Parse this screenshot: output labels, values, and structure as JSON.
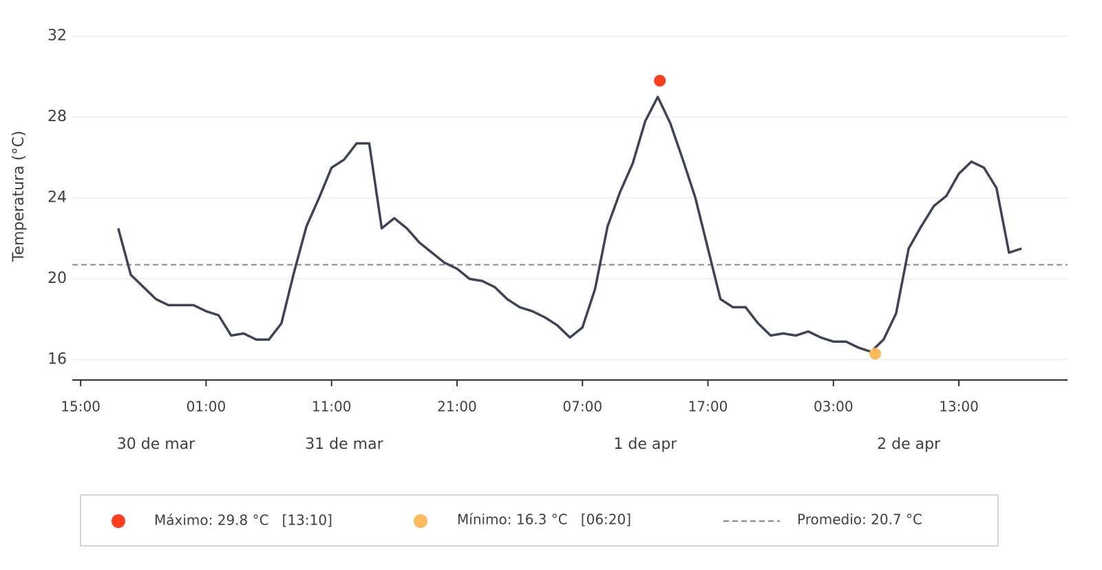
{
  "chart_data": {
    "type": "line",
    "y_label": "Temperatura (°C)",
    "x": [
      "03-30 18:00",
      "03-30 19:00",
      "03-30 20:00",
      "03-30 21:00",
      "03-30 22:00",
      "03-30 23:00",
      "03-31 00:00",
      "03-31 01:00",
      "03-31 02:00",
      "03-31 03:00",
      "03-31 04:00",
      "03-31 05:00",
      "03-31 06:00",
      "03-31 07:00",
      "03-31 08:00",
      "03-31 09:00",
      "03-31 10:00",
      "03-31 11:00",
      "03-31 12:00",
      "03-31 13:00",
      "03-31 14:00",
      "03-31 15:00",
      "03-31 16:00",
      "03-31 17:00",
      "03-31 18:00",
      "03-31 19:00",
      "03-31 20:00",
      "03-31 21:00",
      "03-31 22:00",
      "03-31 23:00",
      "04-01 00:00",
      "04-01 01:00",
      "04-01 02:00",
      "04-01 03:00",
      "04-01 04:00",
      "04-01 05:00",
      "04-01 06:00",
      "04-01 07:00",
      "04-01 08:00",
      "04-01 09:00",
      "04-01 10:00",
      "04-01 11:00",
      "04-01 12:00",
      "04-01 13:00",
      "04-01 14:00",
      "04-01 15:00",
      "04-01 16:00",
      "04-01 17:00",
      "04-01 18:00",
      "04-01 19:00",
      "04-01 20:00",
      "04-01 21:00",
      "04-01 22:00",
      "04-01 23:00",
      "04-02 00:00",
      "04-02 01:00",
      "04-02 02:00",
      "04-02 03:00",
      "04-02 04:00",
      "04-02 05:00",
      "04-02 06:00",
      "04-02 07:00",
      "04-02 08:00",
      "04-02 09:00",
      "04-02 10:00",
      "04-02 11:00",
      "04-02 12:00",
      "04-02 13:00",
      "04-02 14:00",
      "04-02 15:00",
      "04-02 16:00",
      "04-02 17:00",
      "04-02 18:00"
    ],
    "series": [
      {
        "color": "#3f4356",
        "values": [
          22.5,
          20.2,
          19.6,
          19.0,
          18.7,
          18.7,
          18.7,
          18.4,
          18.2,
          17.2,
          17.3,
          17.0,
          17.0,
          17.8,
          20.3,
          22.6,
          24.0,
          25.5,
          25.9,
          26.7,
          26.7,
          22.5,
          23.0,
          22.5,
          21.8,
          21.3,
          20.8,
          20.5,
          20.0,
          19.9,
          19.6,
          19.0,
          18.6,
          18.4,
          18.1,
          17.7,
          17.1,
          17.6,
          19.5,
          22.6,
          24.3,
          25.7,
          27.8,
          29.0,
          27.7,
          25.9,
          24.0,
          21.5,
          19.0,
          18.6,
          18.6,
          17.8,
          17.2,
          17.3,
          17.2,
          17.4,
          17.1,
          16.9,
          16.9,
          16.6,
          16.4,
          17.0,
          18.3,
          21.5,
          22.6,
          23.6,
          24.1,
          25.2,
          25.8,
          25.5,
          24.5,
          21.3,
          21.5
        ]
      }
    ],
    "max": {
      "label": "Máximo: 29.8 °C   [13:10]",
      "x": "04-01 13:10",
      "value": 29.8,
      "color": "#ff3d1f"
    },
    "min": {
      "label": "Mínimo: 16.3 °C   [06:20]",
      "x": "04-02 06:20",
      "value": 16.3,
      "color": "#fdbb5c"
    },
    "mean": {
      "label": "Promedio: 20.7 °C",
      "value": 20.7,
      "color": "#8c8c8c"
    },
    "xlim": [
      "03-30 14:20",
      "04-02 21:40"
    ],
    "xticks": [
      {
        "value": "03-30 15:00",
        "label": "15:00"
      },
      {
        "value": "03-31 01:00",
        "label": "01:00"
      },
      {
        "value": "03-31 11:00",
        "label": "11:00"
      },
      {
        "value": "03-31 21:00",
        "label": "21:00"
      },
      {
        "value": "04-01 07:00",
        "label": "07:00"
      },
      {
        "value": "04-01 17:00",
        "label": "17:00"
      },
      {
        "value": "04-02 03:00",
        "label": "03:00"
      },
      {
        "value": "04-02 13:00",
        "label": "13:00"
      }
    ],
    "day_labels": [
      {
        "value": "03-30 21:00",
        "label": "30 de mar"
      },
      {
        "value": "03-31 12:00",
        "label": "31 de mar"
      },
      {
        "value": "04-01 12:00",
        "label": "1 de apr"
      },
      {
        "value": "04-02 09:00",
        "label": "2 de apr"
      }
    ],
    "ylim": [
      15,
      33.5
    ],
    "yticks": [
      16,
      20,
      24,
      28,
      32
    ],
    "grid": true
  }
}
